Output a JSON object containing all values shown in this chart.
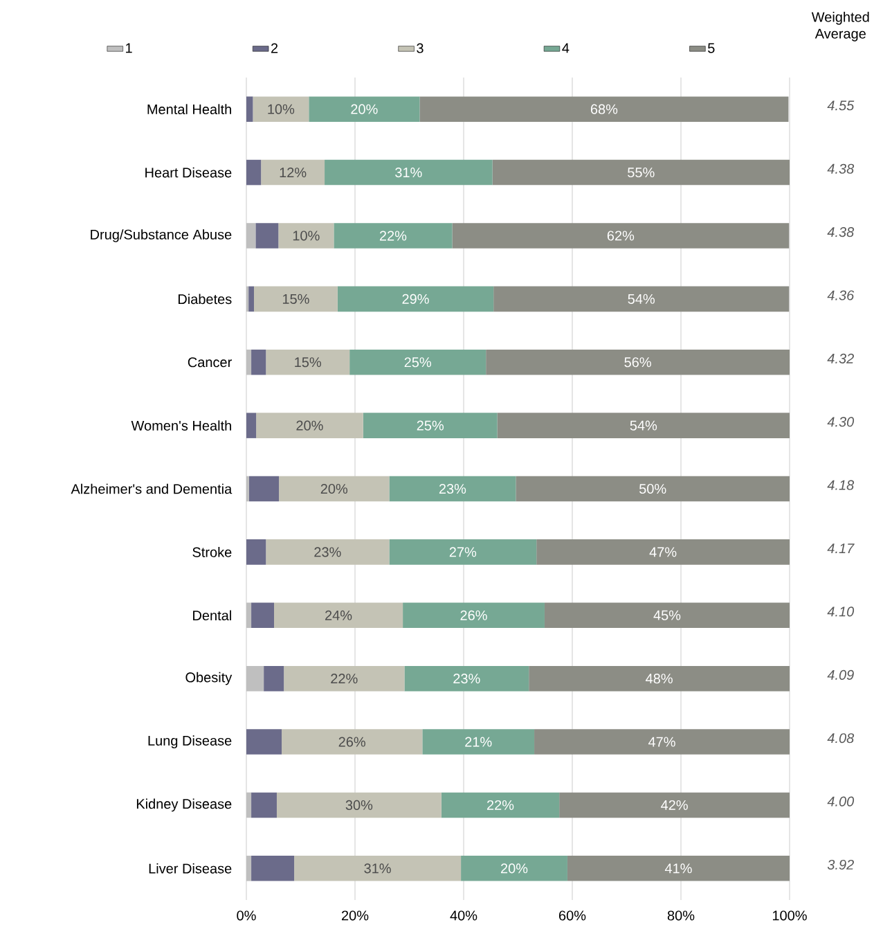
{
  "chart_data": {
    "type": "bar",
    "orientation": "horizontal",
    "stacked": true,
    "categories": [
      "Mental Health",
      "Heart Disease",
      "Drug/Substance Abuse",
      "Diabetes",
      "Cancer",
      "Women's Health",
      "Alzheimer's and Dementia",
      "Stroke",
      "Dental",
      "Obesity",
      "Lung Disease",
      "Kidney Disease",
      "Liver Disease"
    ],
    "series": [
      {
        "name": "1",
        "color": "#bfbfbf",
        "values": [
          0,
          0,
          1.7,
          0.4,
          0.9,
          0,
          0.5,
          0,
          0.9,
          3.2,
          0,
          0.9,
          0.9
        ]
      },
      {
        "name": "2",
        "color": "#6b6b8a",
        "values": [
          1.2,
          2.7,
          4.2,
          1.0,
          2.7,
          1.8,
          5.5,
          3.6,
          4.2,
          3.7,
          6.5,
          4.7,
          7.9
        ]
      },
      {
        "name": "3",
        "color": "#c4c3b5",
        "values": [
          10.3,
          11.7,
          10.2,
          15.4,
          15.4,
          19.7,
          20.3,
          22.7,
          23.7,
          22.2,
          25.9,
          30.3,
          30.7
        ],
        "value_labels": [
          "10%",
          "12%",
          "10%",
          "15%",
          "15%",
          "20%",
          "20%",
          "23%",
          "24%",
          "22%",
          "26%",
          "30%",
          "31%"
        ]
      },
      {
        "name": "4",
        "color": "#76a894",
        "values": [
          20.4,
          30.9,
          21.8,
          28.7,
          25.1,
          24.7,
          23.3,
          27.1,
          26.1,
          22.9,
          20.6,
          21.7,
          19.6
        ],
        "value_labels": [
          "20%",
          "31%",
          "22%",
          "29%",
          "25%",
          "25%",
          "23%",
          "27%",
          "26%",
          "23%",
          "21%",
          "22%",
          "20%"
        ]
      },
      {
        "name": "5",
        "color": "#8c8d85",
        "values": [
          67.9,
          54.7,
          62.0,
          54.4,
          55.9,
          53.8,
          50.4,
          46.6,
          45.1,
          48.0,
          47.0,
          42.4,
          40.9
        ],
        "value_labels": [
          "68%",
          "55%",
          "62%",
          "54%",
          "56%",
          "54%",
          "50%",
          "47%",
          "45%",
          "48%",
          "47%",
          "42%",
          "41%"
        ]
      }
    ],
    "xlim": [
      0,
      100
    ],
    "xticks": [
      {
        "value": 0,
        "label": "0%"
      },
      {
        "value": 20,
        "label": "20%"
      },
      {
        "value": 40,
        "label": "40%"
      },
      {
        "value": 60,
        "label": "60%"
      },
      {
        "value": 80,
        "label": "80%"
      },
      {
        "value": 100,
        "label": "100%"
      }
    ],
    "grid": "x",
    "legend": "top",
    "annotations": [
      "Weighted Average",
      "4.55",
      "4.38",
      "4.38",
      "4.36",
      "4.32",
      "4.30",
      "4.18",
      "4.17",
      "4.10",
      "4.09",
      "4.08",
      "4.00",
      "3.92"
    ]
  }
}
